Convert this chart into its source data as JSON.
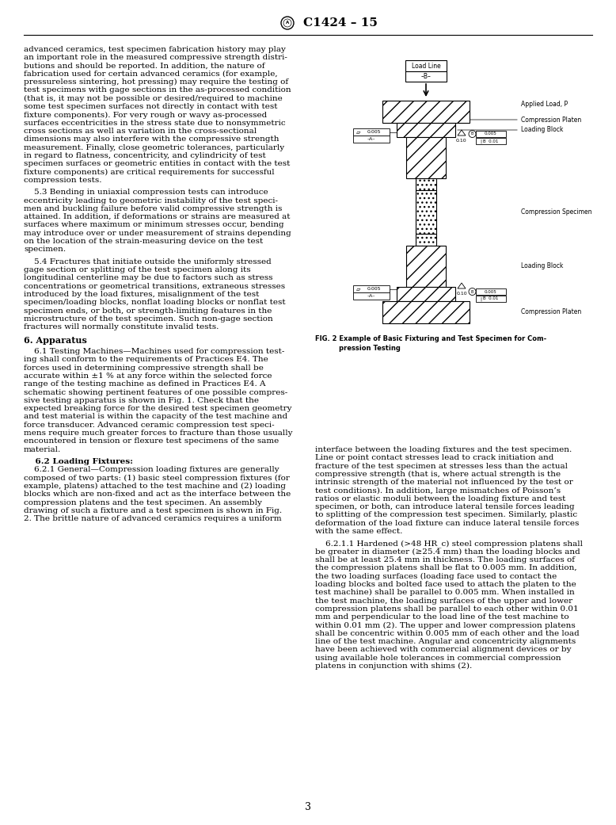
{
  "title": "C1424 – 15",
  "page_number": "3",
  "background_color": "#ffffff",
  "left_col_lines": [
    "advanced ceramics, test specimen fabrication history may play",
    "an important role in the measured compressive strength distri-",
    "butions and should be reported. In addition, the nature of",
    "fabrication used for certain advanced ceramics (for example,",
    "pressureless sintering, hot pressing) may require the testing of",
    "test specimens with gage sections in the as-processed condition",
    "(that is, it may not be possible or desired/required to machine",
    "some test specimen surfaces not directly in contact with test",
    "fixture components). For very rough or wavy as-processed",
    "surfaces eccentricities in the stress state due to nonsymmetric",
    "cross sections as well as variation in the cross-sectional",
    "dimensions may also interfere with the compressive strength",
    "measurement. Finally, close geometric tolerances, particularly",
    "in regard to flatness, concentricity, and cylindricity of test",
    "specimen surfaces or geometric entities in contact with the test",
    "fixture components) are critical requirements for successful",
    "compression tests.",
    "",
    "    5.3 Bending in uniaxial compression tests can introduce",
    "eccentricity leading to geometric instability of the test speci-",
    "men and buckling failure before valid compressive strength is",
    "attained. In addition, if deformations or strains are measured at",
    "surfaces where maximum or minimum stresses occur, bending",
    "may introduce over or under measurement of strains depending",
    "on the location of the strain-measuring device on the test",
    "specimen.",
    "",
    "    5.4 Fractures that initiate outside the uniformly stressed",
    "gage section or splitting of the test specimen along its",
    "longitudinal centerline may be due to factors such as stress",
    "concentrations or geometrical transitions, extraneous stresses",
    "introduced by the load fixtures, misalignment of the test",
    "specimen/loading blocks, nonflat loading blocks or nonflat test",
    "specimen ends, or both, or strength-limiting features in the",
    "microstructure of the test specimen. Such non-gage section",
    "fractures will normally constitute invalid tests.",
    "",
    "6. Apparatus",
    "",
    "    6.1 Testing Machines—Machines used for compression test-",
    "ing shall conform to the requirements of Practices E4. The",
    "forces used in determining compressive strength shall be",
    "accurate within ±1 % at any force within the selected force",
    "range of the testing machine as defined in Practices E4. A",
    "schematic showing pertinent features of one possible compres-",
    "sive testing apparatus is shown in Fig. 1. Check that the",
    "expected breaking force for the desired test specimen geometry",
    "and test material is within the capacity of the test machine and",
    "force transducer. Advanced ceramic compression test speci-",
    "mens require much greater forces to fracture than those usually",
    "encountered in tension or flexure test specimens of the same",
    "material.",
    "",
    "    6.2 Loading Fixtures:",
    "    6.2.1 General—Compression loading fixtures are generally",
    "composed of two parts: (1) basic steel compression fixtures (for",
    "example, platens) attached to the test machine and (2) loading",
    "blocks which are non-fixed and act as the interface between the",
    "compression platens and the test specimen. An assembly",
    "drawing of such a fixture and a test specimen is shown in Fig.",
    "2. The brittle nature of advanced ceramics requires a uniform"
  ],
  "right_col_lines_bottom": [
    "interface between the loading fixtures and the test specimen.",
    "Line or point contact stresses lead to crack initiation and",
    "fracture of the test specimen at stresses less than the actual",
    "compressive strength (that is, where actual strength is the",
    "intrinsic strength of the material not influenced by the test or",
    "test conditions). In addition, large mismatches of Poisson’s",
    "ratios or elastic moduli between the loading fixture and test",
    "specimen, or both, can introduce lateral tensile forces leading",
    "to splitting of the compression test specimen. Similarly, plastic",
    "deformation of the load fixture can induce lateral tensile forces",
    "with the same effect.",
    "",
    "    6.2.1.1 Hardened (>48 HR_c) steel compression platens shall",
    "be greater in diameter (≥25.4 mm) than the loading blocks and",
    "shall be at least 25.4 mm in thickness. The loading surfaces of",
    "the compression platens shall be flat to 0.005 mm. In addition,",
    "the two loading surfaces (loading face used to contact the",
    "loading blocks and bolted face used to attach the platen to the",
    "test machine) shall be parallel to 0.005 mm. When installed in",
    "the test machine, the loading surfaces of the upper and lower",
    "compression platens shall be parallel to each other within 0.01",
    "mm and perpendicular to the load line of the test machine to",
    "within 0.01 mm (2). The upper and lower compression platens",
    "shall be concentric within 0.005 mm of each other and the load",
    "line of the test machine. Angular and concentricity alignments",
    "have been achieved with commercial alignment devices or by",
    "using available hole tolerances in commercial compression",
    "platens in conjunction with shims (2)."
  ],
  "section_bold_indices": [
    37,
    38
  ],
  "apparatus_line": 37,
  "loading_fixtures_line": 52,
  "fig_caption_line1": "FIG. 2 Example of Basic Fixturing and Test Specimen for Com-",
  "fig_caption_line2": "pression Testing"
}
